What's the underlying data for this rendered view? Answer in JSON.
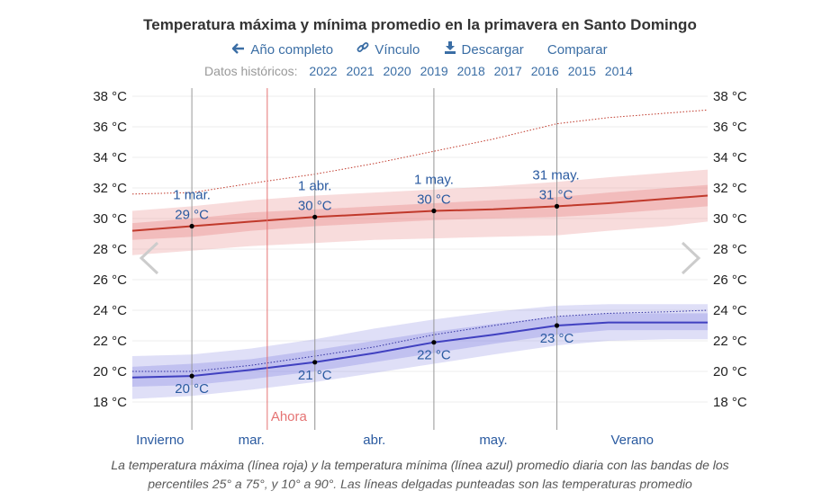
{
  "title": "Temperatura máxima y mínima promedio en la primavera en Santo Domingo",
  "toolbar": {
    "full_year": "Año completo",
    "link": "Vínculo",
    "download": "Descargar",
    "compare": "Comparar"
  },
  "history": {
    "label": "Datos históricos:",
    "years": [
      "2022",
      "2021",
      "2020",
      "2019",
      "2018",
      "2017",
      "2016",
      "2015",
      "2014"
    ]
  },
  "caption": "La temperatura máxima (línea roja) y la temperatura mínima (línea azul) promedio diaria con las bandas de los percentiles 25° a 75°, y 10° a 90°. Las líneas delgadas punteadas son las temperaturas promedio",
  "colors": {
    "max": "#c0392b",
    "min": "#4040c0",
    "today": "#e57373",
    "link": "#3b6ea5"
  },
  "icons": {
    "full_year": "arrow-left-icon",
    "link": "link-icon",
    "download": "download-icon",
    "prev": "chevron-left-icon",
    "next": "chevron-right-icon"
  },
  "chart_data": {
    "type": "line",
    "unit": "°C",
    "ylim": [
      17,
      38
    ],
    "yticks": [
      18,
      20,
      22,
      24,
      26,
      28,
      30,
      32,
      34,
      36,
      38
    ],
    "ytick_labels": [
      "18 °C",
      "20 °C",
      "22 °C",
      "24 °C",
      "26 °C",
      "28 °C",
      "30 °C",
      "32 °C",
      "34 °C",
      "36 °C",
      "38 °C"
    ],
    "x_range_days": [
      -15,
      130
    ],
    "season_labels": [
      {
        "label": "Invierno",
        "day": -8
      },
      {
        "label": "mar.",
        "day": 15
      },
      {
        "label": "abr.",
        "day": 46
      },
      {
        "label": "may.",
        "day": 76
      },
      {
        "label": "Verano",
        "day": 111
      }
    ],
    "vlines_days": [
      0,
      31,
      61,
      92
    ],
    "month_boundary_days": [
      31,
      61
    ],
    "today": {
      "label": "Ahora",
      "day": 19
    },
    "series": [
      {
        "name": "máxima",
        "x": [
          -15,
          0,
          15,
          31,
          46,
          61,
          76,
          92,
          105,
          120,
          130
        ],
        "mean": [
          29.2,
          29.5,
          29.8,
          30.1,
          30.3,
          30.5,
          30.6,
          30.8,
          31.0,
          31.3,
          31.5
        ],
        "p25": [
          28.6,
          28.8,
          29.2,
          29.5,
          29.7,
          29.9,
          30.0,
          30.1,
          30.3,
          30.6,
          30.8
        ],
        "p75": [
          29.7,
          30.0,
          30.4,
          30.6,
          30.8,
          31.0,
          31.2,
          31.4,
          31.7,
          32.0,
          32.2
        ],
        "p10": [
          27.6,
          27.9,
          28.2,
          28.4,
          28.6,
          28.7,
          28.8,
          28.9,
          29.2,
          29.5,
          29.8
        ],
        "p90": [
          30.5,
          30.8,
          31.2,
          31.5,
          31.7,
          31.9,
          32.1,
          32.4,
          32.7,
          33.0,
          33.2
        ],
        "dotted": [
          31.6,
          31.7,
          32.3,
          32.9,
          33.6,
          34.4,
          35.2,
          36.2,
          36.6,
          36.9,
          37.1
        ]
      },
      {
        "name": "mínima",
        "x": [
          -15,
          0,
          15,
          31,
          46,
          61,
          76,
          92,
          105,
          120,
          130
        ],
        "mean": [
          19.6,
          19.7,
          20.1,
          20.6,
          21.2,
          21.9,
          22.4,
          23.0,
          23.2,
          23.2,
          23.2
        ],
        "p25": [
          19.0,
          19.1,
          19.5,
          20.0,
          20.6,
          21.2,
          21.8,
          22.4,
          22.7,
          22.7,
          22.7
        ],
        "p75": [
          20.3,
          20.5,
          20.8,
          21.4,
          22.0,
          22.6,
          23.1,
          23.6,
          23.8,
          23.8,
          23.8
        ],
        "p10": [
          18.2,
          18.4,
          18.8,
          19.3,
          19.9,
          20.5,
          21.1,
          21.7,
          22.0,
          22.1,
          22.1
        ],
        "p90": [
          21.0,
          21.1,
          21.5,
          22.1,
          22.8,
          23.4,
          23.9,
          24.3,
          24.4,
          24.4,
          24.4
        ],
        "dotted": [
          20.0,
          20.0,
          20.4,
          21.0,
          21.6,
          22.4,
          23.0,
          23.6,
          23.8,
          23.9,
          24.0
        ]
      }
    ],
    "annotations": [
      {
        "date": "1 mar.",
        "value": "29 °C",
        "day": 0,
        "y": 29.5,
        "series": "máxima"
      },
      {
        "date": "1 abr.",
        "value": "30 °C",
        "day": 31,
        "y": 30.1,
        "series": "máxima"
      },
      {
        "date": "1 may.",
        "value": "30 °C",
        "day": 61,
        "y": 30.5,
        "series": "máxima"
      },
      {
        "date": "31 may.",
        "value": "31 °C",
        "day": 92,
        "y": 30.8,
        "series": "máxima"
      },
      {
        "value": "20 °C",
        "day": 0,
        "y": 19.7,
        "series": "mínima"
      },
      {
        "value": "21 °C",
        "day": 31,
        "y": 20.6,
        "series": "mínima"
      },
      {
        "value": "22 °C",
        "day": 61,
        "y": 21.9,
        "series": "mínima"
      },
      {
        "value": "23 °C",
        "day": 92,
        "y": 23.0,
        "series": "mínima"
      }
    ]
  }
}
